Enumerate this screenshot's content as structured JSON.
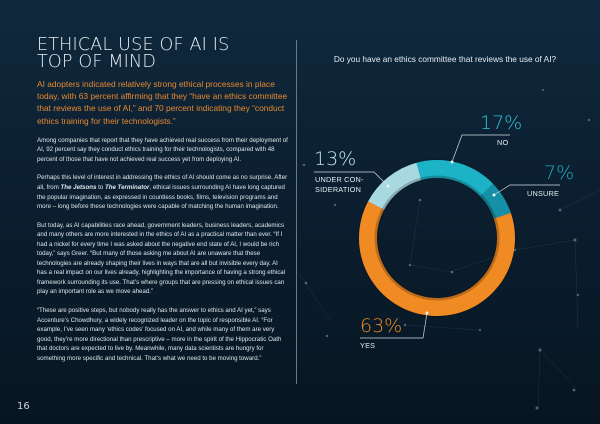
{
  "page": {
    "number": "16"
  },
  "article": {
    "title_line1": "ETHICAL USE OF AI IS",
    "title_line2": "TOP OF MIND",
    "lead": "AI adopters indicated relatively strong ethical processes in place today, with 63 percent affirming that they “have an ethics committee that reviews the use of AI,” and 70 percent indicating they “conduct ethics training for their technologists.”",
    "p1": "Among companies that report that they have achieved real success from their deployment of AI, 92 percent say they conduct ethics training for their technologists, compared with 48 percent of those that have not achieved real success yet from deploying AI.",
    "p2_a": "Perhaps this level of interest in addressing the ethics of AI should come as no surprise. After all, from ",
    "p2_em1": "The Jetsons",
    "p2_b": " to ",
    "p2_em2": "The Terminator",
    "p2_c": ", ethical issues surrounding AI have long captured the popular imagination, as expressed in countless books, films, television programs and more – long before these technologies were capable of matching the human imagination.",
    "p3": "But today, as AI capabilities race ahead, government leaders, business leaders, academics and many others are more interested in the ethics of AI as a practical matter than ever. “If I had a nickel for every time I was asked about the negative end state of AI, I would be rich today,” says Greer. “But many of those asking me about AI are unaware that these technologies are already shaping their lives in ways that are all but invisible every day. AI has a real impact on our lives already, highlighting the importance of having a strong ethical framework surrounding its use. That’s where groups that are pressing on ethical issues can play an important role as we move ahead.”",
    "p4": "“These are positive steps, but nobody really has the answer to ethics and AI yet,” says Accenture’s Chowdhury, a widely recognized leader on the topic of responsible AI. “For example, I’ve seen many ‘ethics codes’ focused on AI, and while many of them are very good, they’re more directional than prescriptive – more in the spirit of the Hippocratic Oath that doctors are expected to live by. Meanwhile, many data scientists are hungry for something more specific and technical. That’s what we need to be moving toward.”"
  },
  "colors": {
    "accent_orange": "#f08a24",
    "teal_bright": "#1fb3c6",
    "teal_dark": "#1690a6",
    "teal_light": "#a9d9e0",
    "background_top": "#10293d",
    "background_bottom": "#071521"
  },
  "chart_data": {
    "type": "pie",
    "subtype": "donut",
    "title": "Do you have an ethics committee that reviews the use of AI?",
    "categories": [
      "YES",
      "NO",
      "UNSURE",
      "UNDER CONSIDERATION"
    ],
    "values": [
      63,
      17,
      7,
      13
    ],
    "unit": "%",
    "labels": [
      {
        "category": "YES",
        "value_label": "63%",
        "text": "YES",
        "color": "#f08a24"
      },
      {
        "category": "NO",
        "value_label": "17%",
        "text": "NO",
        "color": "#1fb3c6"
      },
      {
        "category": "UNSURE",
        "value_label": "7%",
        "text": "UNSURE",
        "color": "#1690a6"
      },
      {
        "category": "UNDER CONSIDERATION",
        "value_label": "13%",
        "text_line1": "UNDER CON-",
        "text_line2": "SIDERATION",
        "color": "#a9d9e0"
      }
    ],
    "legend": "none (callout labels)"
  }
}
